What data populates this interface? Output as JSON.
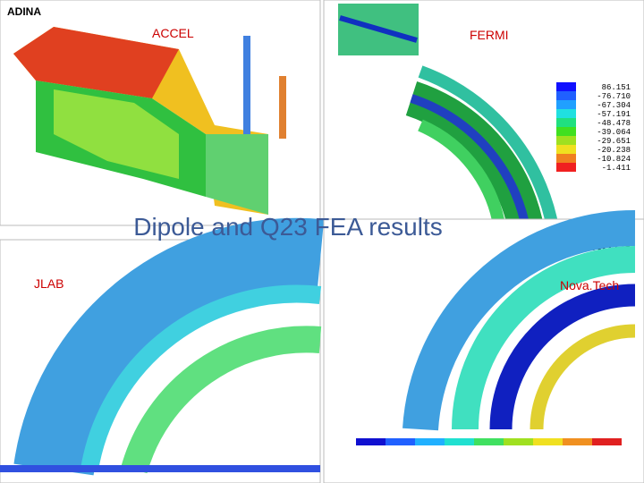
{
  "title": "Dipole  and Q23 FEA results",
  "panels": [
    {
      "label": "ACCEL",
      "software": "ADINA"
    },
    {
      "label": "FERMI",
      "legend": [
        "86.151",
        "-76.710",
        "-67.304",
        "-57.191",
        "-48.478",
        "-39.064",
        "-29.651",
        "-20.238",
        "-10.824",
        "-1.411"
      ]
    },
    {
      "label": "JLAB"
    },
    {
      "label": "Nova.Tech",
      "software": "ANSYS"
    }
  ]
}
